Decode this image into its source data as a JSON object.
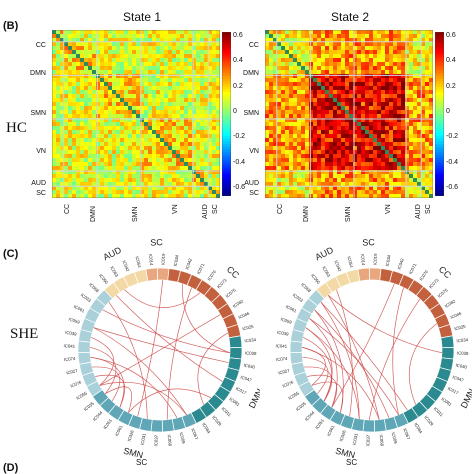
{
  "panel_labels": {
    "b": "(B)",
    "c": "(C)",
    "d": "(D)"
  },
  "row_labels": {
    "hc": "HC",
    "she": "SHE"
  },
  "states": [
    "State 1",
    "State 2"
  ],
  "networks_y": [
    "CC",
    "DMN",
    "SMN",
    "VN",
    "AUD",
    "SC"
  ],
  "networks_x": [
    "CC",
    "DMN",
    "SMN",
    "VN",
    "AUD",
    "SC"
  ],
  "colorbar_ticks": [
    "0.6",
    "0.4",
    "0.2",
    "0",
    "-0.2",
    "-0.4",
    "-0.6"
  ],
  "circle_groups": [
    "SC",
    "CC",
    "DMN",
    "SMN",
    "VN",
    "AUD"
  ],
  "circle_ic_labels": [
    "IC014",
    "IC019",
    "IC034",
    "IC042",
    "IC071",
    "IC070",
    "IC073",
    "IC075",
    "IC082",
    "IC046",
    "IC025",
    "IC034",
    "IC038",
    "IC040",
    "IC047",
    "IC017",
    "IC081",
    "IC011",
    "IC029",
    "IC084",
    "IC067",
    "IC009",
    "IC068",
    "IC037",
    "IC031",
    "IC026",
    "IC061",
    "IC051",
    "IC044",
    "IC035",
    "IC055",
    "IC076",
    "IC027",
    "IC074",
    "IC041",
    "IC039",
    "IC059",
    "IC061",
    "IC033",
    "IC058",
    "IC090",
    "IC063",
    "IC042",
    "IC054"
  ],
  "colors": {
    "sc": "#e8a77e",
    "cc": "#c3603d",
    "dmn": "#2b8a8f",
    "smn": "#5fa7b7",
    "vn": "#aad1da",
    "aud": "#f2d9a5",
    "chord": "#cc4444"
  },
  "chart_data": [
    {
      "type": "heatmap",
      "title": "State 1",
      "row_networks": [
        "CC",
        "DMN",
        "SMN",
        "VN",
        "AUD",
        "SC"
      ],
      "col_networks": [
        "CC",
        "DMN",
        "SMN",
        "VN",
        "AUD",
        "SC"
      ],
      "zlim": [
        -0.6,
        0.6
      ],
      "colormap": "jet"
    },
    {
      "type": "heatmap",
      "title": "State 2",
      "row_networks": [
        "CC",
        "DMN",
        "SMN",
        "VN",
        "AUD",
        "SC"
      ],
      "col_networks": [
        "CC",
        "DMN",
        "SMN",
        "VN",
        "AUD",
        "SC"
      ],
      "zlim": [
        -0.6,
        0.6
      ],
      "colormap": "jet"
    }
  ]
}
